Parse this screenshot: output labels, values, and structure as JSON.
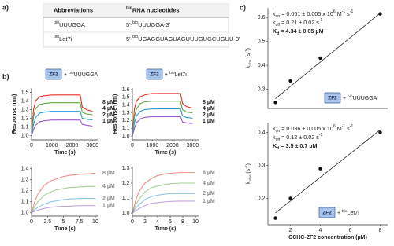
{
  "panel_labels": [
    "a)",
    "b)",
    "c)"
  ],
  "table": {
    "header": [
      [
        {
          "t": "Abbreviations"
        }
      ],
      [
        {
          "sup": "bio"
        },
        {
          "t": "RNA nucleotides"
        }
      ]
    ],
    "rows": [
      [
        [
          {
            "sup": "bio"
          },
          {
            "t": "UUUGGA"
          }
        ],
        [
          {
            "t": "5'-"
          },
          {
            "sup": "bio"
          },
          {
            "t": "UUUGGA-3'"
          }
        ]
      ],
      [
        [
          {
            "sup": "bio"
          },
          {
            "t": "Let7i"
          }
        ],
        [
          {
            "t": "5'-"
          },
          {
            "sup": "bio"
          },
          {
            "t": "UGAGGUAGUAGUUUGUGCUGUU-3'"
          }
        ]
      ]
    ]
  },
  "chart_data": [
    {
      "type": "line",
      "tag": "ZF2",
      "ligand": [
        {
          "t": "+ "
        },
        {
          "sup": "bio"
        },
        {
          "t": "UUUGGA"
        }
      ],
      "xlabel": "Time (s)",
      "ylabel": "Response (nm)",
      "legend": "stacked",
      "opacity": 1,
      "x": [
        0,
        100,
        200,
        400,
        600,
        1000,
        1500,
        2000,
        2400,
        2500,
        2700,
        3000
      ],
      "xlim": [
        0,
        3300
      ],
      "xticks": [
        0,
        1000,
        2000,
        3000
      ],
      "ylim": [
        0.95,
        1.55
      ],
      "yticks": [
        {
          "value": 1.0,
          "label": "1.0"
        },
        1.1,
        1.2,
        1.3,
        1.4,
        1.5
      ],
      "series": [
        {
          "name": "8 µM",
          "color": "#e8312a",
          "values": [
            1.0,
            1.3,
            1.4,
            1.45,
            1.46,
            1.47,
            1.47,
            1.47,
            1.47,
            1.33,
            1.3,
            1.28
          ]
        },
        {
          "name": "4 µM",
          "color": "#5fa83f",
          "values": [
            1.0,
            1.22,
            1.31,
            1.36,
            1.37,
            1.38,
            1.38,
            1.38,
            1.38,
            1.27,
            1.25,
            1.24
          ]
        },
        {
          "name": "2 µM",
          "color": "#2e9bd6",
          "values": [
            1.0,
            1.13,
            1.21,
            1.26,
            1.27,
            1.28,
            1.28,
            1.28,
            1.28,
            1.2,
            1.19,
            1.18
          ]
        },
        {
          "name": "1 µM",
          "color": "#9b59d0",
          "values": [
            1.0,
            1.07,
            1.12,
            1.16,
            1.17,
            1.18,
            1.18,
            1.18,
            1.18,
            1.13,
            1.12,
            1.11
          ]
        }
      ]
    },
    {
      "type": "line",
      "tag": "ZF2",
      "ligand": [
        {
          "t": "+ "
        },
        {
          "sup": "bio"
        },
        {
          "t": "Let7i"
        }
      ],
      "xlabel": "Time (s)",
      "ylabel": "Response (nm)",
      "legend": "stacked",
      "opacity": 1,
      "x": [
        0,
        100,
        200,
        400,
        600,
        1000,
        1500,
        2000,
        2400,
        2500,
        2700,
        3000
      ],
      "xlim": [
        0,
        3300
      ],
      "xticks": [
        0,
        1000,
        2000,
        3000
      ],
      "ylim": [
        0.95,
        1.62
      ],
      "yticks": [
        {
          "value": 1.0,
          "label": "1.0"
        },
        1.1,
        1.2,
        1.3,
        1.4,
        1.5,
        1.6
      ],
      "series": [
        {
          "name": "8 µM",
          "color": "#e8312a",
          "values": [
            1.0,
            1.35,
            1.45,
            1.51,
            1.53,
            1.55,
            1.55,
            1.55,
            1.55,
            1.42,
            1.38,
            1.36
          ]
        },
        {
          "name": "4 µM",
          "color": "#5fa83f",
          "values": [
            1.0,
            1.25,
            1.35,
            1.42,
            1.44,
            1.45,
            1.45,
            1.45,
            1.45,
            1.34,
            1.31,
            1.3
          ]
        },
        {
          "name": "2 µM",
          "color": "#2e9bd6",
          "values": [
            1.0,
            1.17,
            1.26,
            1.32,
            1.34,
            1.35,
            1.35,
            1.35,
            1.35,
            1.26,
            1.24,
            1.23
          ]
        },
        {
          "name": "1 µM",
          "color": "#9b59d0",
          "values": [
            1.0,
            1.1,
            1.17,
            1.22,
            1.24,
            1.25,
            1.25,
            1.25,
            1.25,
            1.18,
            1.17,
            1.16
          ]
        }
      ]
    },
    {
      "type": "line",
      "xlabel": "Time (s)",
      "legend": "end",
      "opacity": 0.55,
      "x": [
        0,
        0.5,
        1,
        2,
        3,
        4,
        5,
        6,
        7.5,
        9,
        10
      ],
      "xlim": [
        0,
        10.5
      ],
      "xticks": [
        0,
        2.5,
        5,
        7.5,
        10
      ],
      "ylim": [
        0.97,
        1.42
      ],
      "yticks": [
        {
          "value": 1.0,
          "label": "1.0"
        },
        1.1,
        1.2,
        1.3,
        1.4
      ],
      "series": [
        {
          "name": "8 µM",
          "color": "#e8312a",
          "values": [
            1.0,
            1.1,
            1.17,
            1.25,
            1.29,
            1.31,
            1.33,
            1.34,
            1.35,
            1.355,
            1.36
          ]
        },
        {
          "name": "4 µM",
          "color": "#5fa83f",
          "values": [
            1.0,
            1.06,
            1.1,
            1.16,
            1.19,
            1.21,
            1.22,
            1.23,
            1.235,
            1.24,
            1.24
          ]
        },
        {
          "name": "2 µM",
          "color": "#2e9bd6",
          "values": [
            1.0,
            1.03,
            1.05,
            1.08,
            1.1,
            1.11,
            1.12,
            1.125,
            1.13,
            1.13,
            1.13
          ]
        },
        {
          "name": "1 µM",
          "color": "#9b59d0",
          "values": [
            1.0,
            1.015,
            1.025,
            1.04,
            1.05,
            1.055,
            1.06,
            1.06,
            1.065,
            1.065,
            1.065
          ]
        }
      ]
    },
    {
      "type": "line",
      "xlabel": "Time (s)",
      "legend": "end",
      "opacity": 0.55,
      "x": [
        0,
        0.5,
        1,
        2,
        3,
        4,
        5,
        6,
        7.5,
        9,
        10
      ],
      "xlim": [
        0,
        10.5
      ],
      "xticks": [
        0,
        2,
        4,
        6,
        8,
        10
      ],
      "ylim": [
        0.98,
        1.31
      ],
      "yticks": [
        {
          "value": 1.0,
          "label": "1.0"
        },
        1.1,
        1.2,
        1.3
      ],
      "series": [
        {
          "name": "8 µM",
          "color": "#e8312a",
          "values": [
            1.0,
            1.08,
            1.14,
            1.2,
            1.23,
            1.25,
            1.26,
            1.265,
            1.27,
            1.27,
            1.27
          ]
        },
        {
          "name": "4 µM",
          "color": "#5fa83f",
          "values": [
            1.0,
            1.05,
            1.09,
            1.14,
            1.17,
            1.18,
            1.19,
            1.195,
            1.2,
            1.2,
            1.2
          ]
        },
        {
          "name": "2 µM",
          "color": "#2e9bd6",
          "values": [
            1.0,
            1.03,
            1.055,
            1.09,
            1.11,
            1.12,
            1.125,
            1.13,
            1.13,
            1.13,
            1.13
          ]
        },
        {
          "name": "1 µM",
          "color": "#9b59d0",
          "values": [
            1.0,
            1.015,
            1.03,
            1.05,
            1.065,
            1.07,
            1.075,
            1.078,
            1.08,
            1.08,
            1.08
          ]
        }
      ]
    },
    {
      "type": "scatter",
      "tag": "ZF2",
      "ligand": [
        {
          "t": "+ "
        },
        {
          "sup": "bio"
        },
        {
          "t": "UUUGGA"
        }
      ],
      "ylabel": [
        {
          "t": "k"
        },
        {
          "sub": "obs"
        },
        {
          "t": " (s"
        },
        {
          "sup": "-1"
        },
        {
          "t": ")"
        }
      ],
      "annotations": [
        [
          {
            "t": "k"
          },
          {
            "sub": "on"
          },
          {
            "t": " = 0.051 ± 0.005 x 10"
          },
          {
            "sup": "6"
          },
          {
            "t": " M"
          },
          {
            "sup": "-1"
          },
          {
            "t": " s"
          },
          {
            "sup": "-1"
          }
        ],
        [
          {
            "t": "k"
          },
          {
            "sub": "off"
          },
          {
            "t": " = 0.21 ± 0.02 s"
          },
          {
            "sup": "-1"
          }
        ],
        [
          {
            "t": "K"
          },
          {
            "sub": "d"
          },
          {
            "t": " = 4.34 ± 0.65 µM"
          }
        ]
      ],
      "annotation_colors": [
        "#222222",
        "#222222",
        "#1f4e9c"
      ],
      "color": "#111111",
      "x": [
        1,
        2,
        4,
        8
      ],
      "values": [
        0.245,
        0.335,
        0.43,
        0.615
      ],
      "fit_line": {
        "x": [
          1,
          8
        ],
        "values": [
          0.261,
          0.618
        ]
      },
      "xlim": [
        0.5,
        8.5
      ],
      "xticks": [],
      "ylim": [
        0.22,
        0.64
      ],
      "yticks": [
        0.3,
        0.4,
        0.5,
        0.6
      ]
    },
    {
      "type": "scatter",
      "tag": "ZF2",
      "ligand": [
        {
          "t": "+ "
        },
        {
          "sup": "bio"
        },
        {
          "t": "Let7i"
        }
      ],
      "xlabel": "CCHC-ZF2 concentration (µM)",
      "ylabel": [
        {
          "t": "k"
        },
        {
          "sub": "obs"
        },
        {
          "t": " (s"
        },
        {
          "sup": "-1"
        },
        {
          "t": ")"
        }
      ],
      "annotations": [
        [
          {
            "t": "k"
          },
          {
            "sub": "on"
          },
          {
            "t": " = 0.036 ± 0.005 x 10"
          },
          {
            "sup": "6"
          },
          {
            "t": " M"
          },
          {
            "sup": "-1"
          },
          {
            "t": " s"
          },
          {
            "sup": "-1"
          }
        ],
        [
          {
            "t": "k"
          },
          {
            "sub": "off"
          },
          {
            "t": " = 0.12 ± 0.02 s"
          },
          {
            "sup": "-1"
          }
        ],
        [
          {
            "t": "K"
          },
          {
            "sub": "d"
          },
          {
            "t": " = 3.5 ± 0.7 µM"
          }
        ]
      ],
      "annotation_colors": [
        "#222222",
        "#222222",
        "#1f4e9c"
      ],
      "color": "#111111",
      "x": [
        1,
        2,
        4,
        8
      ],
      "values": [
        0.14,
        0.2,
        0.29,
        0.4
      ],
      "fit_line": {
        "x": [
          1,
          8
        ],
        "values": [
          0.156,
          0.408
        ]
      },
      "xlim": [
        0.5,
        8.5
      ],
      "xticks": [
        2,
        4,
        6,
        8
      ],
      "ylim": [
        0.12,
        0.43
      ],
      "yticks": [
        0.2,
        0.3,
        0.4
      ]
    }
  ]
}
